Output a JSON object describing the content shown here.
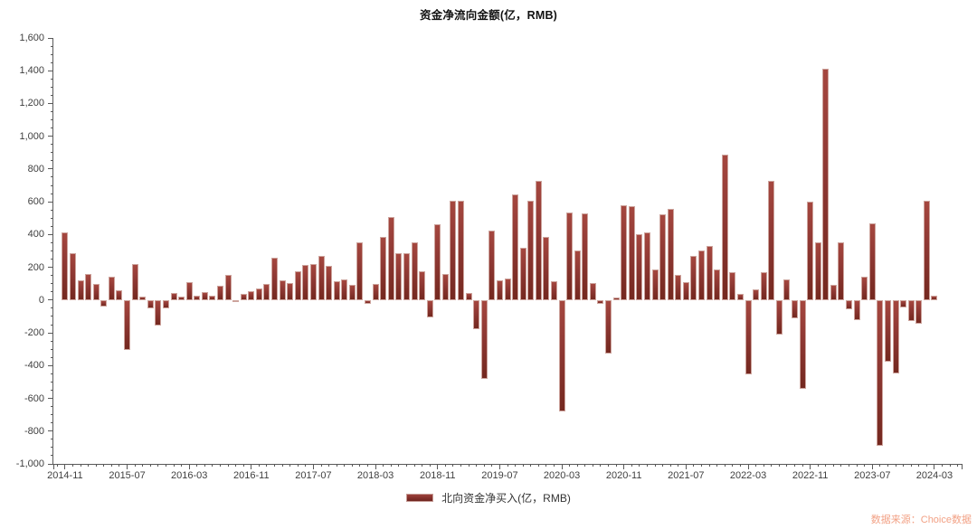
{
  "title": "资金净流向金额(亿，RMB)",
  "legend": {
    "label": "北向资金净买入(亿，RMB)"
  },
  "watermark": "数据来源：Choice数据",
  "colors": {
    "bar_main": "#8e3833",
    "bar_light": "#a5473f",
    "bar_dark": "#74281f",
    "bar_rim": "#cda49d",
    "axis": "#595959",
    "axis_text": "#3f3f3f",
    "title_text": "#111111",
    "watermark_text": "#f2a185",
    "background": "#ffffff"
  },
  "chart_data": {
    "type": "bar",
    "title": "资金净流向金额(亿，RMB)",
    "series_name": "北向资金净买入(亿，RMB)",
    "ylabel": "",
    "xlabel": "",
    "ylim": [
      -1000,
      1600
    ],
    "y_tick_step": 200,
    "y_minor_step": 50,
    "grid": false,
    "legend_position": "bottom",
    "x_tick_labels": [
      "2014-11",
      "2015-07",
      "2016-03",
      "2016-11",
      "2017-07",
      "2018-03",
      "2018-11",
      "2019-07",
      "2020-03",
      "2020-11",
      "2021-07",
      "2022-03",
      "2022-11",
      "2023-07",
      "2024-03"
    ],
    "x": [
      "2014-11",
      "2014-12",
      "2015-01",
      "2015-02",
      "2015-03",
      "2015-04",
      "2015-05",
      "2015-06",
      "2015-07",
      "2015-08",
      "2015-09",
      "2015-10",
      "2015-11",
      "2015-12",
      "2016-01",
      "2016-02",
      "2016-03",
      "2016-04",
      "2016-05",
      "2016-06",
      "2016-07",
      "2016-08",
      "2016-09",
      "2016-10",
      "2016-11",
      "2016-12",
      "2017-01",
      "2017-02",
      "2017-03",
      "2017-04",
      "2017-05",
      "2017-06",
      "2017-07",
      "2017-08",
      "2017-09",
      "2017-10",
      "2017-11",
      "2017-12",
      "2018-01",
      "2018-02",
      "2018-03",
      "2018-04",
      "2018-05",
      "2018-06",
      "2018-07",
      "2018-08",
      "2018-09",
      "2018-10",
      "2018-11",
      "2018-12",
      "2019-01",
      "2019-02",
      "2019-03",
      "2019-04",
      "2019-05",
      "2019-06",
      "2019-07",
      "2019-08",
      "2019-09",
      "2019-10",
      "2019-11",
      "2019-12",
      "2020-01",
      "2020-02",
      "2020-03",
      "2020-04",
      "2020-05",
      "2020-06",
      "2020-07",
      "2020-08",
      "2020-09",
      "2020-10",
      "2020-11",
      "2020-12",
      "2021-01",
      "2021-02",
      "2021-03",
      "2021-04",
      "2021-05",
      "2021-06",
      "2021-07",
      "2021-08",
      "2021-09",
      "2021-10",
      "2021-11",
      "2021-12",
      "2022-01",
      "2022-02",
      "2022-03",
      "2022-04",
      "2022-05",
      "2022-06",
      "2022-07",
      "2022-08",
      "2022-09",
      "2022-10",
      "2022-11",
      "2022-12",
      "2023-01",
      "2023-02",
      "2023-03",
      "2023-04",
      "2023-05",
      "2023-06",
      "2023-07",
      "2023-08",
      "2023-09",
      "2023-10",
      "2023-11",
      "2023-12",
      "2024-01",
      "2024-02",
      "2024-03"
    ],
    "values": [
      411,
      288,
      118,
      160,
      101,
      -38,
      145,
      62,
      -304,
      218,
      20,
      -52,
      -158,
      -48,
      42,
      20,
      110,
      29,
      48,
      29,
      88,
      152,
      -10,
      40,
      52,
      70,
      101,
      260,
      122,
      105,
      175,
      216,
      222,
      268,
      207,
      116,
      125,
      92,
      351,
      -25,
      97,
      387,
      508,
      285,
      285,
      350,
      175,
      -105,
      462,
      161,
      607,
      604,
      44,
      -180,
      -480,
      426,
      120,
      130,
      647,
      321,
      604,
      730,
      385,
      116,
      -679,
      533,
      301,
      527,
      104,
      -21,
      -328,
      15,
      579,
      572,
      400,
      412,
      187,
      526,
      557,
      155,
      108,
      271,
      305,
      329,
      189,
      890,
      168,
      40,
      -451,
      63,
      169,
      730,
      -211,
      127,
      -112,
      -540,
      601,
      350,
      1413,
      93,
      354,
      -55,
      -121,
      140,
      470,
      -890,
      -375,
      -448,
      -45,
      -130,
      -145,
      607,
      25
    ]
  }
}
